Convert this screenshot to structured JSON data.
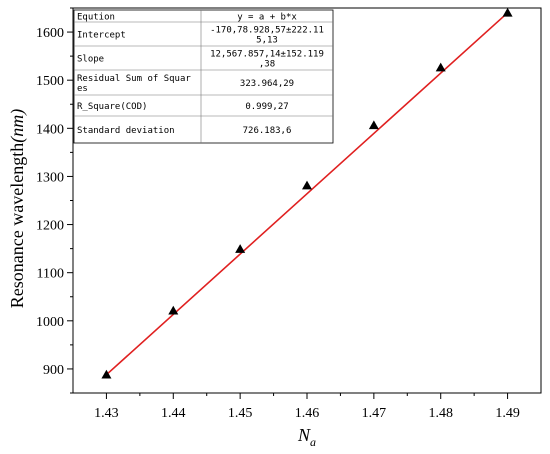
{
  "chart_data": {
    "type": "scatter",
    "title": "",
    "xlabel_main": "N",
    "xlabel_sub": "a",
    "ylabel_main": "Resonance wavelength",
    "ylabel_unit": "(nm)",
    "xlim": [
      1.425,
      1.495
    ],
    "ylim": [
      850,
      1650
    ],
    "x_ticks": [
      1.43,
      1.44,
      1.45,
      1.46,
      1.47,
      1.48,
      1.49
    ],
    "x_tick_labels": [
      "1.43",
      "1.44",
      "1.45",
      "1.46",
      "1.47",
      "1.48",
      "1.49"
    ],
    "y_ticks": [
      900,
      1000,
      1100,
      1200,
      1300,
      1400,
      1500,
      1600
    ],
    "y_tick_labels": [
      "900",
      "1000",
      "1100",
      "1200",
      "1300",
      "1400",
      "1500",
      "1600"
    ],
    "points": [
      {
        "x": 1.43,
        "y": 888
      },
      {
        "x": 1.44,
        "y": 1021
      },
      {
        "x": 1.45,
        "y": 1149
      },
      {
        "x": 1.46,
        "y": 1281
      },
      {
        "x": 1.47,
        "y": 1406
      },
      {
        "x": 1.48,
        "y": 1526
      },
      {
        "x": 1.49,
        "y": 1640
      }
    ],
    "fit_line": {
      "x0": 1.43,
      "y0": 888,
      "x1": 1.49,
      "y1": 1640
    },
    "colors": {
      "fit_line": "#e02020",
      "points": "#000000"
    },
    "fit_table": {
      "rows": [
        {
          "label": "Eqution",
          "value_lines": [
            "y = a + b*x"
          ]
        },
        {
          "label": "Intercept",
          "value_lines": [
            "-170,78.928,57±222.11",
            "5,13"
          ]
        },
        {
          "label": "Slope",
          "value_lines": [
            "12,567.857,14±152.119",
            ",38"
          ]
        },
        {
          "label_lines": [
            "Residual Sum of Squar",
            "es"
          ],
          "value_lines": [
            "323.964,29"
          ]
        },
        {
          "label": "R_Square(COD)",
          "value_lines": [
            "0.999,27"
          ]
        },
        {
          "label": "Standard deviation",
          "value_lines": [
            "726.183,6"
          ]
        }
      ]
    }
  }
}
